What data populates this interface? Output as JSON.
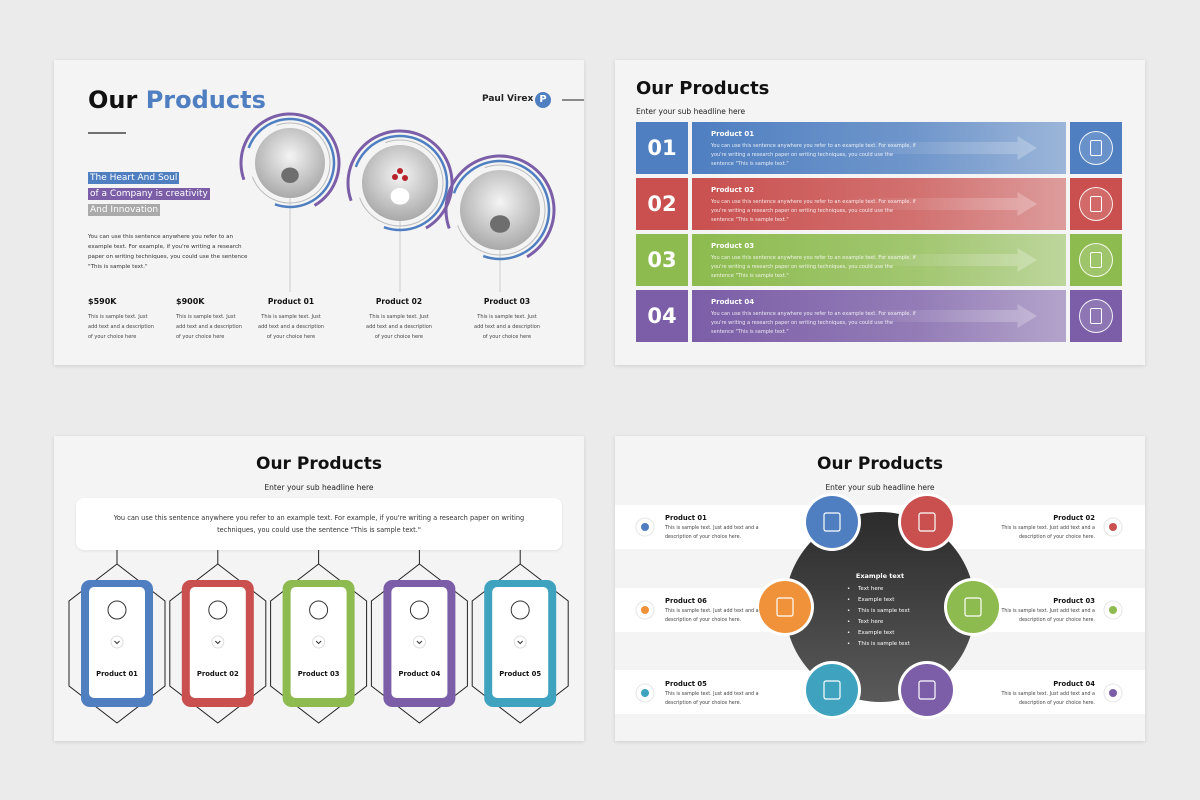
{
  "slide1": {
    "title_part1": "Our",
    "title_part2": "Products",
    "author": "Paul Virex",
    "logo": "P",
    "headline_lines": [
      "The Heart And Soul",
      "of a Company is creativity",
      "And Innovation"
    ],
    "body": "You can use this sentence anywhere you refer to an example text. For example, if you're writing a research paper on writing techniques, you could use the sentence \"This is sample text.\"",
    "stats": [
      {
        "value": "$590K",
        "text": "This is sample text. Just add text and a description of your choice here"
      },
      {
        "value": "$900K",
        "text": "This is sample text. Just add text and a description of your choice here"
      }
    ],
    "products": [
      {
        "name": "Product 01",
        "text": "This is sample text. Just add text and a description of your choice here"
      },
      {
        "name": "Product 02",
        "text": "This is sample text. Just add text and a description of your choice here"
      },
      {
        "name": "Product 03",
        "text": "This is sample text. Just add text and a description of your choice here"
      }
    ]
  },
  "slide2": {
    "title": "Our Products",
    "subtitle": "Enter your sub headline here",
    "rows": [
      {
        "number": "01",
        "name": "Product 01",
        "text": "You can use this sentence anywhere you refer to an example text. For example, if you're writing a research paper on writing techniques, you could use the sentence \"This is sample text.\""
      },
      {
        "number": "02",
        "name": "Product 02",
        "text": "You can use this sentence anywhere you refer to an example text. For example, if you're writing a research paper on writing techniques, you could use the sentence \"This is sample text.\""
      },
      {
        "number": "03",
        "name": "Product 03",
        "text": "You can use this sentence anywhere you refer to an example text. For example, if you're writing a research paper on writing techniques, you could use the sentence \"This is sample text.\""
      },
      {
        "number": "04",
        "name": "Product 04",
        "text": "You can use this sentence anywhere you refer to an example text. For example, if you're writing a research paper on writing techniques, you could use the sentence \"This is sample text.\""
      }
    ]
  },
  "slide3": {
    "title": "Our Products",
    "subtitle": "Enter your sub headline here",
    "intro": "You can use this sentence anywhere you refer to an example text. For example, if you're writing a research paper on writing techniques, you could use the sentence \"This is sample text.\"",
    "products": [
      "Product 01",
      "Product 02",
      "Product 03",
      "Product 04",
      "Product 05"
    ]
  },
  "slide4": {
    "title": "Our Products",
    "subtitle": "Enter your sub headline here",
    "center_title": "Example text",
    "center_items": [
      "Text here",
      "Example text",
      "This is sample text",
      "Text here",
      "Example text",
      "This is sample text"
    ],
    "products": [
      {
        "name": "Product 01",
        "text": "This is sample text. Just add text and a description of your choice here."
      },
      {
        "name": "Product 02",
        "text": "This is sample text. Just add text and a description of your choice here."
      },
      {
        "name": "Product 03",
        "text": "This is sample text. Just add text and a description of your choice here."
      },
      {
        "name": "Product 04",
        "text": "This is sample text. Just add text and a description of your choice here."
      },
      {
        "name": "Product 05",
        "text": "This is sample text. Just add text and a description of your choice here."
      },
      {
        "name": "Product 06",
        "text": "This is sample text. Just add text and a description of your choice here."
      }
    ]
  }
}
